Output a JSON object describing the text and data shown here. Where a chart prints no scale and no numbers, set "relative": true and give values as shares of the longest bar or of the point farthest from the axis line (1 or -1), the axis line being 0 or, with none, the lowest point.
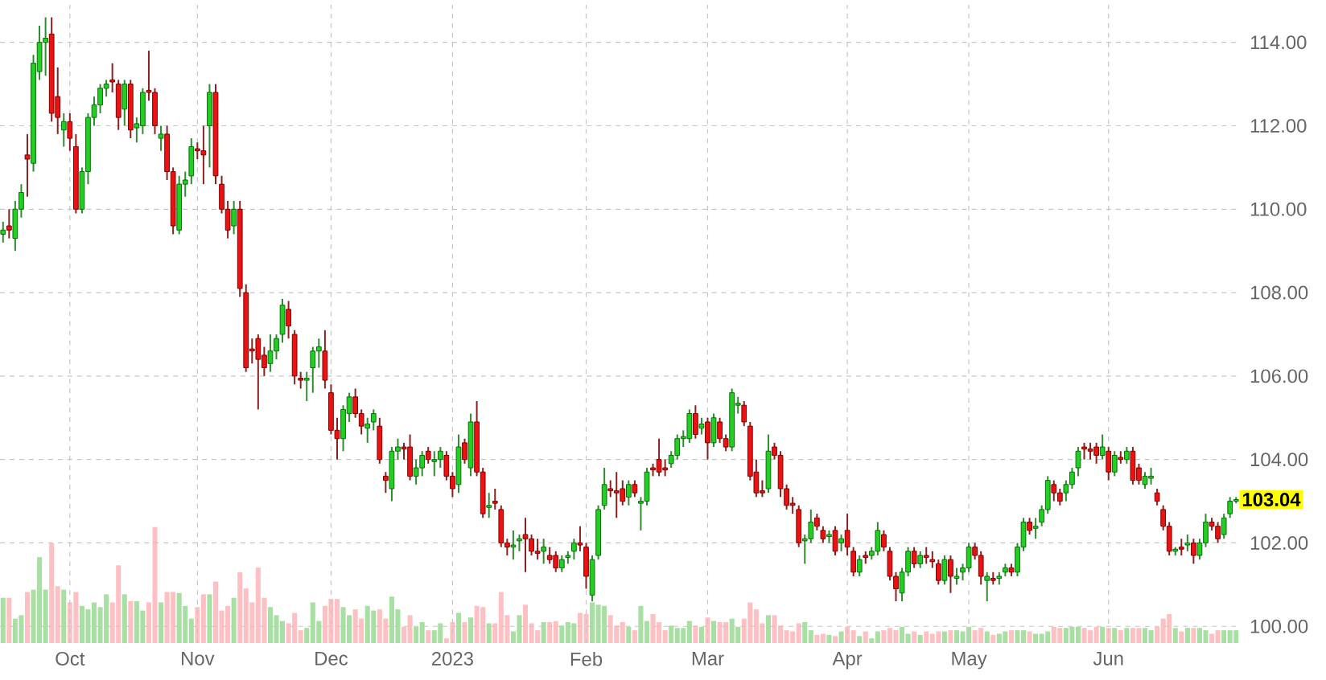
{
  "chart_data": [
    {
      "type": "candlestick",
      "categories": [
        null,
        null,
        null,
        null,
        null,
        null,
        null,
        null,
        null,
        null,
        null,
        "Oct",
        null,
        null,
        null,
        null,
        null,
        null,
        null,
        null,
        null,
        null,
        null,
        null,
        null,
        null,
        null,
        null,
        null,
        null,
        null,
        null,
        "Nov",
        null,
        null,
        null,
        null,
        null,
        null,
        null,
        null,
        null,
        null,
        null,
        null,
        null,
        null,
        null,
        null,
        null,
        null,
        null,
        null,
        null,
        "Dec",
        null,
        null,
        null,
        null,
        null,
        null,
        null,
        null,
        null,
        null,
        null,
        null,
        null,
        null,
        null,
        null,
        null,
        null,
        null,
        "2023",
        null,
        null,
        null,
        null,
        null,
        null,
        null,
        null,
        null,
        null,
        null,
        null,
        null,
        null,
        null,
        null,
        null,
        null,
        null,
        null,
        null,
        "Feb",
        null,
        null,
        null,
        null,
        null,
        null,
        null,
        null,
        null,
        null,
        null,
        null,
        null,
        null,
        null,
        null,
        null,
        null,
        null,
        "Mar",
        null,
        null,
        null,
        null,
        null,
        null,
        null,
        null,
        null,
        null,
        null,
        null,
        null,
        null,
        null,
        null,
        null,
        null,
        null,
        null,
        null,
        null,
        "Apr",
        null,
        null,
        null,
        null,
        null,
        null,
        null,
        null,
        null,
        null,
        null,
        null,
        null,
        null,
        null,
        null,
        null,
        null,
        null,
        "May",
        null,
        null,
        null,
        null,
        null,
        null,
        null,
        null,
        null,
        null,
        null,
        null,
        null,
        null,
        null,
        null,
        null,
        null,
        null,
        null,
        null,
        null,
        "Jun",
        null,
        null,
        null,
        null,
        null,
        null,
        null,
        null,
        null,
        null,
        null,
        null,
        null,
        null,
        null,
        null,
        null,
        null,
        null,
        null,
        null
      ],
      "ohlc": [
        [
          109.4,
          109.7,
          109.2,
          109.5
        ],
        [
          109.6,
          110.0,
          109.3,
          109.5
        ],
        [
          109.3,
          110.2,
          109.0,
          110.0
        ],
        [
          110.0,
          110.6,
          109.8,
          110.4
        ],
        [
          111.3,
          111.8,
          110.3,
          111.2
        ],
        [
          111.1,
          113.7,
          110.9,
          113.5
        ],
        [
          113.3,
          114.4,
          113.1,
          114.0
        ],
        [
          114.0,
          114.6,
          113.2,
          114.1
        ],
        [
          114.2,
          114.6,
          112.1,
          112.3
        ],
        [
          112.7,
          113.4,
          111.8,
          112.2
        ],
        [
          111.9,
          112.3,
          111.5,
          112.1
        ],
        [
          112.1,
          112.3,
          111.4,
          111.7
        ],
        [
          111.5,
          111.8,
          109.9,
          110.0
        ],
        [
          110.0,
          111.0,
          109.9,
          110.9
        ],
        [
          110.9,
          112.3,
          110.6,
          112.2
        ],
        [
          112.2,
          112.7,
          112.0,
          112.5
        ],
        [
          112.5,
          113.0,
          112.3,
          112.9
        ],
        [
          112.9,
          113.1,
          112.7,
          113.0
        ],
        [
          113.1,
          113.5,
          112.8,
          113.05
        ],
        [
          113.0,
          113.1,
          111.9,
          112.2
        ],
        [
          112.4,
          113.1,
          112.0,
          113.0
        ],
        [
          113.0,
          113.1,
          111.7,
          111.9
        ],
        [
          111.95,
          112.2,
          111.6,
          112.05
        ],
        [
          112.0,
          112.9,
          111.8,
          112.8
        ],
        [
          112.85,
          113.8,
          112.6,
          112.8
        ],
        [
          112.8,
          112.9,
          111.8,
          112.0
        ],
        [
          111.7,
          112.0,
          111.4,
          111.8
        ],
        [
          111.8,
          112.0,
          110.7,
          110.9
        ],
        [
          110.9,
          111.0,
          109.4,
          109.6
        ],
        [
          109.5,
          110.8,
          109.4,
          110.6
        ],
        [
          110.6,
          110.9,
          110.3,
          110.7
        ],
        [
          110.8,
          111.7,
          110.6,
          111.5
        ],
        [
          111.45,
          111.6,
          111.2,
          111.4
        ],
        [
          111.4,
          112.0,
          110.6,
          111.3
        ],
        [
          112.0,
          113.0,
          111.0,
          112.8
        ],
        [
          112.8,
          113.0,
          110.6,
          110.8
        ],
        [
          110.6,
          110.8,
          109.9,
          110.0
        ],
        [
          110.0,
          110.2,
          109.3,
          109.5
        ],
        [
          109.6,
          110.2,
          109.4,
          110.0
        ],
        [
          110.0,
          110.2,
          107.9,
          108.1
        ],
        [
          108.0,
          108.2,
          106.1,
          106.2
        ],
        [
          106.65,
          106.9,
          106.3,
          106.6
        ],
        [
          106.9,
          107.0,
          105.2,
          106.4
        ],
        [
          106.5,
          106.7,
          106.0,
          106.2
        ],
        [
          106.3,
          107.0,
          106.1,
          106.6
        ],
        [
          106.6,
          107.0,
          106.4,
          106.9
        ],
        [
          107.0,
          107.85,
          106.8,
          107.7
        ],
        [
          107.6,
          107.8,
          106.9,
          107.2
        ],
        [
          107.0,
          107.1,
          105.8,
          106.0
        ],
        [
          105.95,
          106.1,
          105.7,
          105.9
        ],
        [
          105.9,
          106.1,
          105.4,
          105.95
        ],
        [
          106.2,
          106.7,
          105.6,
          106.6
        ],
        [
          106.6,
          106.9,
          106.2,
          106.7
        ],
        [
          106.6,
          107.1,
          105.7,
          105.9
        ],
        [
          105.6,
          105.8,
          104.6,
          104.7
        ],
        [
          104.7,
          105.0,
          104.0,
          104.5
        ],
        [
          104.5,
          105.3,
          104.2,
          105.2
        ],
        [
          105.1,
          105.6,
          104.9,
          105.5
        ],
        [
          105.5,
          105.7,
          105.0,
          105.1
        ],
        [
          105.1,
          105.2,
          104.6,
          104.8
        ],
        [
          104.75,
          105.0,
          104.4,
          104.85
        ],
        [
          104.9,
          105.2,
          104.7,
          105.1
        ],
        [
          104.8,
          105.0,
          103.9,
          104.0
        ],
        [
          103.6,
          103.7,
          103.2,
          103.5
        ],
        [
          103.3,
          104.3,
          103.0,
          104.2
        ],
        [
          104.2,
          104.5,
          104.0,
          104.3
        ],
        [
          104.3,
          104.4,
          104.0,
          104.25
        ],
        [
          104.3,
          104.6,
          103.5,
          103.6
        ],
        [
          103.6,
          104.0,
          103.4,
          103.8
        ],
        [
          103.8,
          104.2,
          103.6,
          104.1
        ],
        [
          104.2,
          104.3,
          103.9,
          104.0
        ],
        [
          103.95,
          104.2,
          103.6,
          104.0
        ],
        [
          104.0,
          104.3,
          103.8,
          104.2
        ],
        [
          104.1,
          104.2,
          103.5,
          103.6
        ],
        [
          103.6,
          103.7,
          103.1,
          103.3
        ],
        [
          103.4,
          104.6,
          103.2,
          104.3
        ],
        [
          104.4,
          104.5,
          103.9,
          104.0
        ],
        [
          103.8,
          105.1,
          103.6,
          104.9
        ],
        [
          104.9,
          105.4,
          103.6,
          103.7
        ],
        [
          103.7,
          103.8,
          102.6,
          102.7
        ],
        [
          102.85,
          103.2,
          102.6,
          102.9
        ],
        [
          103.0,
          103.3,
          102.8,
          102.95
        ],
        [
          102.8,
          102.9,
          101.9,
          102.0
        ],
        [
          102.0,
          102.1,
          101.7,
          101.9
        ],
        [
          101.9,
          102.3,
          101.6,
          101.95
        ],
        [
          102.05,
          102.2,
          101.8,
          102.1
        ],
        [
          102.2,
          102.6,
          101.3,
          102.1
        ],
        [
          102.1,
          102.2,
          101.7,
          101.8
        ],
        [
          101.8,
          102.1,
          101.6,
          101.75
        ],
        [
          101.8,
          102.1,
          101.5,
          101.9
        ],
        [
          101.7,
          101.9,
          101.5,
          101.6
        ],
        [
          101.7,
          101.8,
          101.3,
          101.4
        ],
        [
          101.4,
          101.7,
          101.3,
          101.6
        ],
        [
          101.65,
          101.8,
          101.5,
          101.7
        ],
        [
          101.8,
          102.1,
          101.6,
          102.0
        ],
        [
          102.0,
          102.4,
          101.8,
          101.95
        ],
        [
          101.9,
          102.0,
          100.9,
          101.2
        ],
        [
          100.75,
          101.7,
          100.6,
          101.6
        ],
        [
          101.7,
          102.9,
          101.6,
          102.8
        ],
        [
          102.9,
          103.8,
          102.8,
          103.4
        ],
        [
          103.3,
          103.5,
          103.1,
          103.25
        ],
        [
          103.25,
          103.7,
          102.6,
          103.2
        ],
        [
          103.3,
          103.5,
          102.9,
          103.0
        ],
        [
          103.1,
          103.5,
          102.9,
          103.4
        ],
        [
          103.4,
          103.5,
          103.1,
          103.2
        ],
        [
          102.95,
          103.1,
          102.3,
          103.0
        ],
        [
          103.0,
          103.8,
          102.9,
          103.7
        ],
        [
          103.8,
          103.9,
          103.6,
          103.75
        ],
        [
          104.0,
          104.5,
          103.6,
          103.7
        ],
        [
          103.8,
          104.0,
          103.6,
          103.75
        ],
        [
          103.9,
          104.2,
          103.8,
          104.1
        ],
        [
          104.1,
          104.6,
          104.0,
          104.5
        ],
        [
          104.5,
          104.7,
          104.3,
          104.55
        ],
        [
          104.5,
          105.2,
          104.4,
          105.1
        ],
        [
          105.1,
          105.3,
          104.5,
          104.6
        ],
        [
          104.75,
          105.0,
          104.6,
          104.85
        ],
        [
          104.9,
          105.0,
          104.0,
          104.4
        ],
        [
          104.4,
          105.1,
          104.3,
          105.0
        ],
        [
          104.9,
          105.0,
          104.4,
          104.5
        ],
        [
          104.5,
          104.6,
          104.2,
          104.3
        ],
        [
          104.3,
          105.7,
          104.2,
          105.6
        ],
        [
          105.3,
          105.5,
          105.1,
          105.35
        ],
        [
          105.3,
          105.4,
          104.8,
          104.9
        ],
        [
          104.8,
          104.9,
          103.5,
          103.6
        ],
        [
          103.7,
          104.0,
          103.1,
          103.2
        ],
        [
          103.25,
          103.5,
          103.1,
          103.2
        ],
        [
          103.3,
          104.6,
          103.2,
          104.2
        ],
        [
          104.3,
          104.4,
          104.0,
          104.1
        ],
        [
          104.1,
          104.2,
          103.1,
          103.3
        ],
        [
          103.3,
          103.4,
          102.8,
          102.9
        ],
        [
          102.95,
          103.1,
          102.7,
          102.9
        ],
        [
          102.8,
          102.9,
          101.9,
          102.0
        ],
        [
          102.05,
          102.2,
          101.5,
          102.1
        ],
        [
          102.1,
          102.8,
          102.0,
          102.5
        ],
        [
          102.6,
          102.7,
          102.3,
          102.4
        ],
        [
          102.3,
          102.4,
          102.0,
          102.1
        ],
        [
          102.15,
          102.3,
          102.0,
          102.2
        ],
        [
          102.3,
          102.4,
          101.7,
          101.8
        ],
        [
          102.0,
          102.2,
          101.8,
          102.1
        ],
        [
          102.3,
          102.7,
          101.7,
          101.9
        ],
        [
          101.8,
          101.9,
          101.2,
          101.3
        ],
        [
          101.3,
          101.7,
          101.2,
          101.6
        ],
        [
          101.7,
          101.8,
          101.5,
          101.65
        ],
        [
          101.7,
          101.9,
          101.6,
          101.8
        ],
        [
          101.8,
          102.5,
          101.7,
          102.3
        ],
        [
          102.2,
          102.3,
          101.8,
          101.9
        ],
        [
          101.8,
          101.9,
          101.1,
          101.2
        ],
        [
          101.2,
          101.3,
          100.6,
          100.9
        ],
        [
          100.8,
          101.4,
          100.6,
          101.3
        ],
        [
          101.3,
          101.9,
          101.2,
          101.8
        ],
        [
          101.8,
          101.9,
          101.4,
          101.5
        ],
        [
          101.5,
          101.8,
          101.4,
          101.7
        ],
        [
          101.7,
          101.9,
          101.5,
          101.65
        ],
        [
          101.6,
          101.8,
          101.4,
          101.55
        ],
        [
          101.5,
          101.6,
          101.0,
          101.1
        ],
        [
          101.1,
          101.7,
          101.0,
          101.6
        ],
        [
          101.6,
          101.7,
          100.8,
          101.2
        ],
        [
          101.15,
          101.4,
          101.0,
          101.2
        ],
        [
          101.3,
          101.5,
          101.1,
          101.4
        ],
        [
          101.4,
          102.0,
          101.3,
          101.9
        ],
        [
          101.9,
          102.0,
          101.6,
          101.7
        ],
        [
          101.7,
          101.8,
          101.0,
          101.2
        ],
        [
          101.1,
          101.3,
          100.6,
          101.2
        ],
        [
          101.15,
          101.3,
          101.0,
          101.1
        ],
        [
          101.15,
          101.3,
          101.0,
          101.2
        ],
        [
          101.3,
          101.5,
          101.2,
          101.4
        ],
        [
          101.4,
          101.5,
          101.2,
          101.3
        ],
        [
          101.3,
          102.0,
          101.2,
          101.9
        ],
        [
          101.9,
          102.6,
          101.8,
          102.5
        ],
        [
          102.5,
          102.6,
          102.2,
          102.3
        ],
        [
          102.35,
          102.6,
          102.1,
          102.4
        ],
        [
          102.5,
          102.9,
          102.4,
          102.8
        ],
        [
          102.8,
          103.6,
          102.7,
          103.5
        ],
        [
          103.4,
          103.5,
          103.0,
          103.2
        ],
        [
          103.2,
          103.3,
          102.9,
          103.0
        ],
        [
          103.2,
          103.5,
          103.0,
          103.4
        ],
        [
          103.4,
          103.8,
          103.3,
          103.7
        ],
        [
          103.8,
          104.3,
          103.6,
          104.2
        ],
        [
          104.3,
          104.4,
          104.0,
          104.25
        ],
        [
          104.25,
          104.4,
          104.0,
          104.2
        ],
        [
          104.3,
          104.4,
          103.9,
          104.1
        ],
        [
          104.1,
          104.6,
          104.0,
          104.3
        ],
        [
          104.2,
          104.3,
          103.5,
          103.7
        ],
        [
          103.7,
          104.2,
          103.6,
          104.1
        ],
        [
          104.05,
          104.2,
          103.9,
          104.0
        ],
        [
          104.0,
          104.3,
          103.9,
          104.2
        ],
        [
          104.2,
          104.3,
          103.4,
          103.5
        ],
        [
          103.8,
          103.9,
          103.4,
          103.5
        ],
        [
          103.4,
          103.7,
          103.3,
          103.6
        ],
        [
          103.55,
          103.8,
          103.4,
          103.6
        ],
        [
          103.2,
          103.3,
          102.9,
          103.0
        ],
        [
          102.8,
          102.9,
          102.3,
          102.4
        ],
        [
          102.4,
          102.5,
          101.7,
          101.8
        ],
        [
          101.8,
          101.9,
          101.7,
          101.85
        ],
        [
          101.9,
          102.1,
          101.7,
          101.85
        ],
        [
          101.95,
          102.2,
          101.8,
          102.0
        ],
        [
          102.0,
          102.1,
          101.5,
          101.7
        ],
        [
          101.7,
          102.1,
          101.6,
          102.0
        ],
        [
          102.0,
          102.7,
          101.9,
          102.5
        ],
        [
          102.5,
          102.6,
          102.3,
          102.4
        ],
        [
          102.4,
          102.5,
          102.0,
          102.1
        ],
        [
          102.2,
          102.7,
          102.1,
          102.6
        ],
        [
          102.7,
          103.1,
          102.6,
          103.0
        ],
        [
          103.0,
          103.1,
          102.95,
          103.04
        ]
      ],
      "ylim": [
        99.6,
        114.9
      ],
      "yticks": [
        {
          "value": 100,
          "label": "100.00"
        },
        {
          "value": 102,
          "label": "102.00"
        },
        {
          "value": 104,
          "label": "104.00"
        },
        {
          "value": 106,
          "label": "106.00"
        },
        {
          "value": 108,
          "label": "108.00"
        },
        {
          "value": 110,
          "label": "110.00"
        },
        {
          "value": 112,
          "label": "112.00"
        },
        {
          "value": 114,
          "label": "114.00"
        }
      ],
      "grid": true,
      "annotations": [
        "103.04"
      ]
    },
    {
      "type": "bar",
      "relative": true,
      "categories": [
        null,
        null,
        null,
        null,
        null,
        null,
        null,
        null,
        null,
        null,
        null,
        null,
        null,
        null,
        null,
        null,
        null,
        null,
        null,
        null,
        null,
        null,
        null,
        null,
        null,
        null,
        null,
        null,
        null,
        null,
        null,
        null,
        null,
        null,
        null,
        null,
        null,
        null,
        null,
        null,
        null,
        null,
        null,
        null,
        null,
        null,
        null,
        null,
        null,
        null,
        null,
        null,
        null,
        null,
        null,
        null,
        null,
        null,
        null,
        null,
        null,
        null,
        null,
        null,
        null,
        null,
        null,
        null,
        null,
        null,
        null,
        null,
        null,
        null,
        null,
        null,
        null,
        null,
        null,
        null,
        null,
        null,
        null,
        null,
        null,
        null,
        null,
        null,
        null,
        null,
        null,
        null,
        null,
        null,
        null,
        null,
        null,
        null,
        null,
        null,
        null,
        null,
        null,
        null,
        null,
        null,
        null,
        null,
        null,
        null,
        null,
        null,
        null,
        null,
        null,
        null,
        null,
        null,
        null,
        null,
        null,
        null,
        null,
        null,
        null,
        null,
        null,
        null,
        null,
        null,
        null,
        null,
        null,
        null,
        null,
        null,
        null,
        null,
        null,
        null,
        null,
        null,
        null,
        null,
        null,
        null,
        null,
        null,
        null,
        null,
        null,
        null,
        null,
        null,
        null,
        null,
        null,
        null,
        null,
        null,
        null,
        null,
        null,
        null,
        null,
        null,
        null,
        null,
        null,
        null,
        null,
        null,
        null,
        null,
        null,
        null,
        null,
        null,
        null,
        null,
        null,
        null,
        null,
        null,
        null,
        null,
        null,
        null,
        null,
        null,
        null,
        null,
        null,
        null,
        null,
        null,
        null,
        null,
        null,
        null,
        null,
        null,
        null,
        null
      ],
      "colors": [
        "#a8dfa2",
        "#ffc0c4",
        "#a8dfa2",
        "#a8dfa2",
        "#ffc0c4",
        "#a8dfa2",
        "#a8dfa2",
        "#a8dfa2",
        "#ffc0c4",
        "#ffc0c4",
        "#a8dfa2",
        "#ffc0c4",
        "#ffc0c4",
        "#a8dfa2",
        "#a8dfa2",
        "#a8dfa2",
        "#a8dfa2",
        "#a8dfa2",
        "#ffc0c4",
        "#ffc0c4",
        "#a8dfa2",
        "#ffc0c4",
        "#a8dfa2",
        "#a8dfa2",
        "#ffc0c4",
        "#ffc0c4",
        "#a8dfa2",
        "#ffc0c4",
        "#ffc0c4",
        "#a8dfa2",
        "#a8dfa2",
        "#a8dfa2",
        "#ffc0c4",
        "#ffc0c4",
        "#a8dfa2",
        "#ffc0c4",
        "#ffc0c4",
        "#ffc0c4",
        "#a8dfa2",
        "#ffc0c4",
        "#ffc0c4",
        "#ffc0c4",
        "#ffc0c4",
        "#ffc0c4",
        "#a8dfa2",
        "#a8dfa2",
        "#a8dfa2",
        "#ffc0c4",
        "#ffc0c4",
        "#ffc0c4",
        "#a8dfa2",
        "#a8dfa2",
        "#a8dfa2",
        "#ffc0c4",
        "#ffc0c4",
        "#ffc0c4",
        "#a8dfa2",
        "#a8dfa2",
        "#ffc0c4",
        "#ffc0c4",
        "#a8dfa2",
        "#a8dfa2",
        "#ffc0c4",
        "#ffc0c4",
        "#a8dfa2",
        "#a8dfa2",
        "#ffc0c4",
        "#ffc0c4",
        "#a8dfa2",
        "#a8dfa2",
        "#ffc0c4",
        "#a8dfa2",
        "#a8dfa2",
        "#ffc0c4",
        "#ffc0c4",
        "#a8dfa2",
        "#ffc0c4",
        "#a8dfa2",
        "#ffc0c4",
        "#ffc0c4",
        "#a8dfa2",
        "#ffc0c4",
        "#ffc0c4",
        "#ffc0c4",
        "#a8dfa2",
        "#a8dfa2",
        "#ffc0c4",
        "#ffc0c4",
        "#ffc0c4",
        "#a8dfa2",
        "#ffc0c4",
        "#ffc0c4",
        "#a8dfa2",
        "#a8dfa2",
        "#a8dfa2",
        "#ffc0c4",
        "#ffc0c4",
        "#a8dfa2",
        "#a8dfa2",
        "#a8dfa2",
        "#ffc0c4",
        "#ffc0c4",
        "#ffc0c4",
        "#a8dfa2",
        "#ffc0c4",
        "#a8dfa2",
        "#a8dfa2",
        "#ffc0c4",
        "#ffc0c4",
        "#ffc0c4",
        "#a8dfa2",
        "#a8dfa2",
        "#a8dfa2",
        "#a8dfa2",
        "#ffc0c4",
        "#a8dfa2",
        "#ffc0c4",
        "#a8dfa2",
        "#ffc0c4",
        "#ffc0c4",
        "#a8dfa2",
        "#a8dfa2",
        "#ffc0c4",
        "#ffc0c4",
        "#ffc0c4",
        "#ffc0c4",
        "#a8dfa2",
        "#ffc0c4",
        "#ffc0c4",
        "#ffc0c4",
        "#ffc0c4",
        "#ffc0c4",
        "#a8dfa2",
        "#a8dfa2",
        "#ffc0c4",
        "#ffc0c4",
        "#a8dfa2",
        "#ffc0c4",
        "#a8dfa2",
        "#ffc0c4",
        "#ffc0c4",
        "#a8dfa2",
        "#ffc0c4",
        "#a8dfa2",
        "#a8dfa2",
        "#ffc0c4",
        "#ffc0c4",
        "#ffc0c4",
        "#a8dfa2",
        "#a8dfa2",
        "#ffc0c4",
        "#a8dfa2",
        "#ffc0c4",
        "#ffc0c4",
        "#ffc0c4",
        "#a8dfa2",
        "#ffc0c4",
        "#a8dfa2",
        "#a8dfa2",
        "#a8dfa2",
        "#ffc0c4",
        "#ffc0c4",
        "#a8dfa2",
        "#ffc0c4",
        "#a8dfa2",
        "#a8dfa2",
        "#ffc0c4",
        "#a8dfa2",
        "#a8dfa2",
        "#ffc0c4",
        "#a8dfa2",
        "#a8dfa2",
        "#a8dfa2",
        "#ffc0c4",
        "#ffc0c4",
        "#a8dfa2",
        "#a8dfa2",
        "#a8dfa2",
        "#ffc0c4",
        "#ffc0c4",
        "#ffc0c4",
        "#a8dfa2",
        "#ffc0c4",
        "#a8dfa2",
        "#ffc0c4",
        "#a8dfa2",
        "#ffc0c4",
        "#ffc0c4",
        "#a8dfa2",
        "#a8dfa2",
        "#ffc0c4",
        "#ffc0c4",
        "#ffc0c4",
        "#a8dfa2",
        "#ffc0c4",
        "#a8dfa2",
        "#ffc0c4",
        "#a8dfa2",
        "#a8dfa2",
        "#ffc0c4",
        "#ffc0c4",
        "#a8dfa2",
        "#a8dfa2",
        "#a8dfa2"
      ],
      "values": [
        0.39,
        0.39,
        0.21,
        0.24,
        0.44,
        0.46,
        0.74,
        0.46,
        0.86,
        0.49,
        0.46,
        0.35,
        0.44,
        0.32,
        0.29,
        0.35,
        0.31,
        0.42,
        0.35,
        0.67,
        0.42,
        0.36,
        0.36,
        0.28,
        0.35,
        1,
        0.35,
        0.44,
        0.44,
        0.43,
        0.32,
        0.21,
        0.31,
        0.42,
        0.42,
        0.53,
        0.28,
        0.32,
        0.39,
        0.61,
        0.47,
        0.35,
        0.65,
        0.39,
        0.31,
        0.24,
        0.19,
        0.17,
        0.26,
        0.11,
        0.13,
        0.35,
        0.19,
        0.32,
        0.38,
        0.38,
        0.31,
        0.24,
        0.29,
        0.21,
        0.32,
        0.28,
        0.29,
        0.21,
        0.4,
        0.29,
        0.14,
        0.24,
        0.14,
        0.18,
        0.11,
        0.11,
        0.17,
        0.04,
        0.18,
        0.26,
        0.18,
        0.22,
        0.32,
        0.31,
        0.17,
        0.17,
        0.44,
        0.24,
        0.1,
        0.24,
        0.33,
        0.17,
        0.11,
        0.18,
        0.18,
        0.19,
        0.15,
        0.18,
        0.17,
        0.26,
        0.25,
        0.35,
        0.33,
        0.32,
        0.24,
        0.15,
        0.18,
        0.14,
        0.11,
        0.32,
        0.19,
        0.25,
        0.18,
        0.11,
        0.15,
        0.13,
        0.13,
        0.19,
        0.15,
        0.14,
        0.22,
        0.19,
        0.18,
        0.18,
        0.21,
        0.14,
        0.21,
        0.35,
        0.29,
        0.17,
        0.24,
        0.24,
        0.15,
        0.11,
        0.1,
        0.17,
        0.18,
        0.11,
        0.07,
        0.08,
        0.07,
        0.06,
        0.1,
        0.14,
        0.11,
        0.06,
        0.1,
        0.04,
        0.1,
        0.11,
        0.13,
        0.11,
        0.14,
        0.08,
        0.1,
        0.07,
        0.1,
        0.08,
        0.1,
        0.1,
        0.11,
        0.11,
        0.1,
        0.14,
        0.11,
        0.13,
        0.1,
        0.07,
        0.08,
        0.1,
        0.11,
        0.11,
        0.11,
        0.1,
        0.08,
        0.08,
        0.1,
        0.14,
        0.13,
        0.13,
        0.14,
        0.14,
        0.13,
        0.11,
        0.14,
        0.14,
        0.13,
        0.13,
        0.11,
        0.13,
        0.13,
        0.13,
        0.13,
        0.11,
        0.14,
        0.21,
        0.25,
        0.13,
        0.1,
        0.13,
        0.13,
        0.13,
        0.11,
        0.08,
        0.11,
        0.11,
        0.11,
        0.11
      ]
    }
  ]
}
